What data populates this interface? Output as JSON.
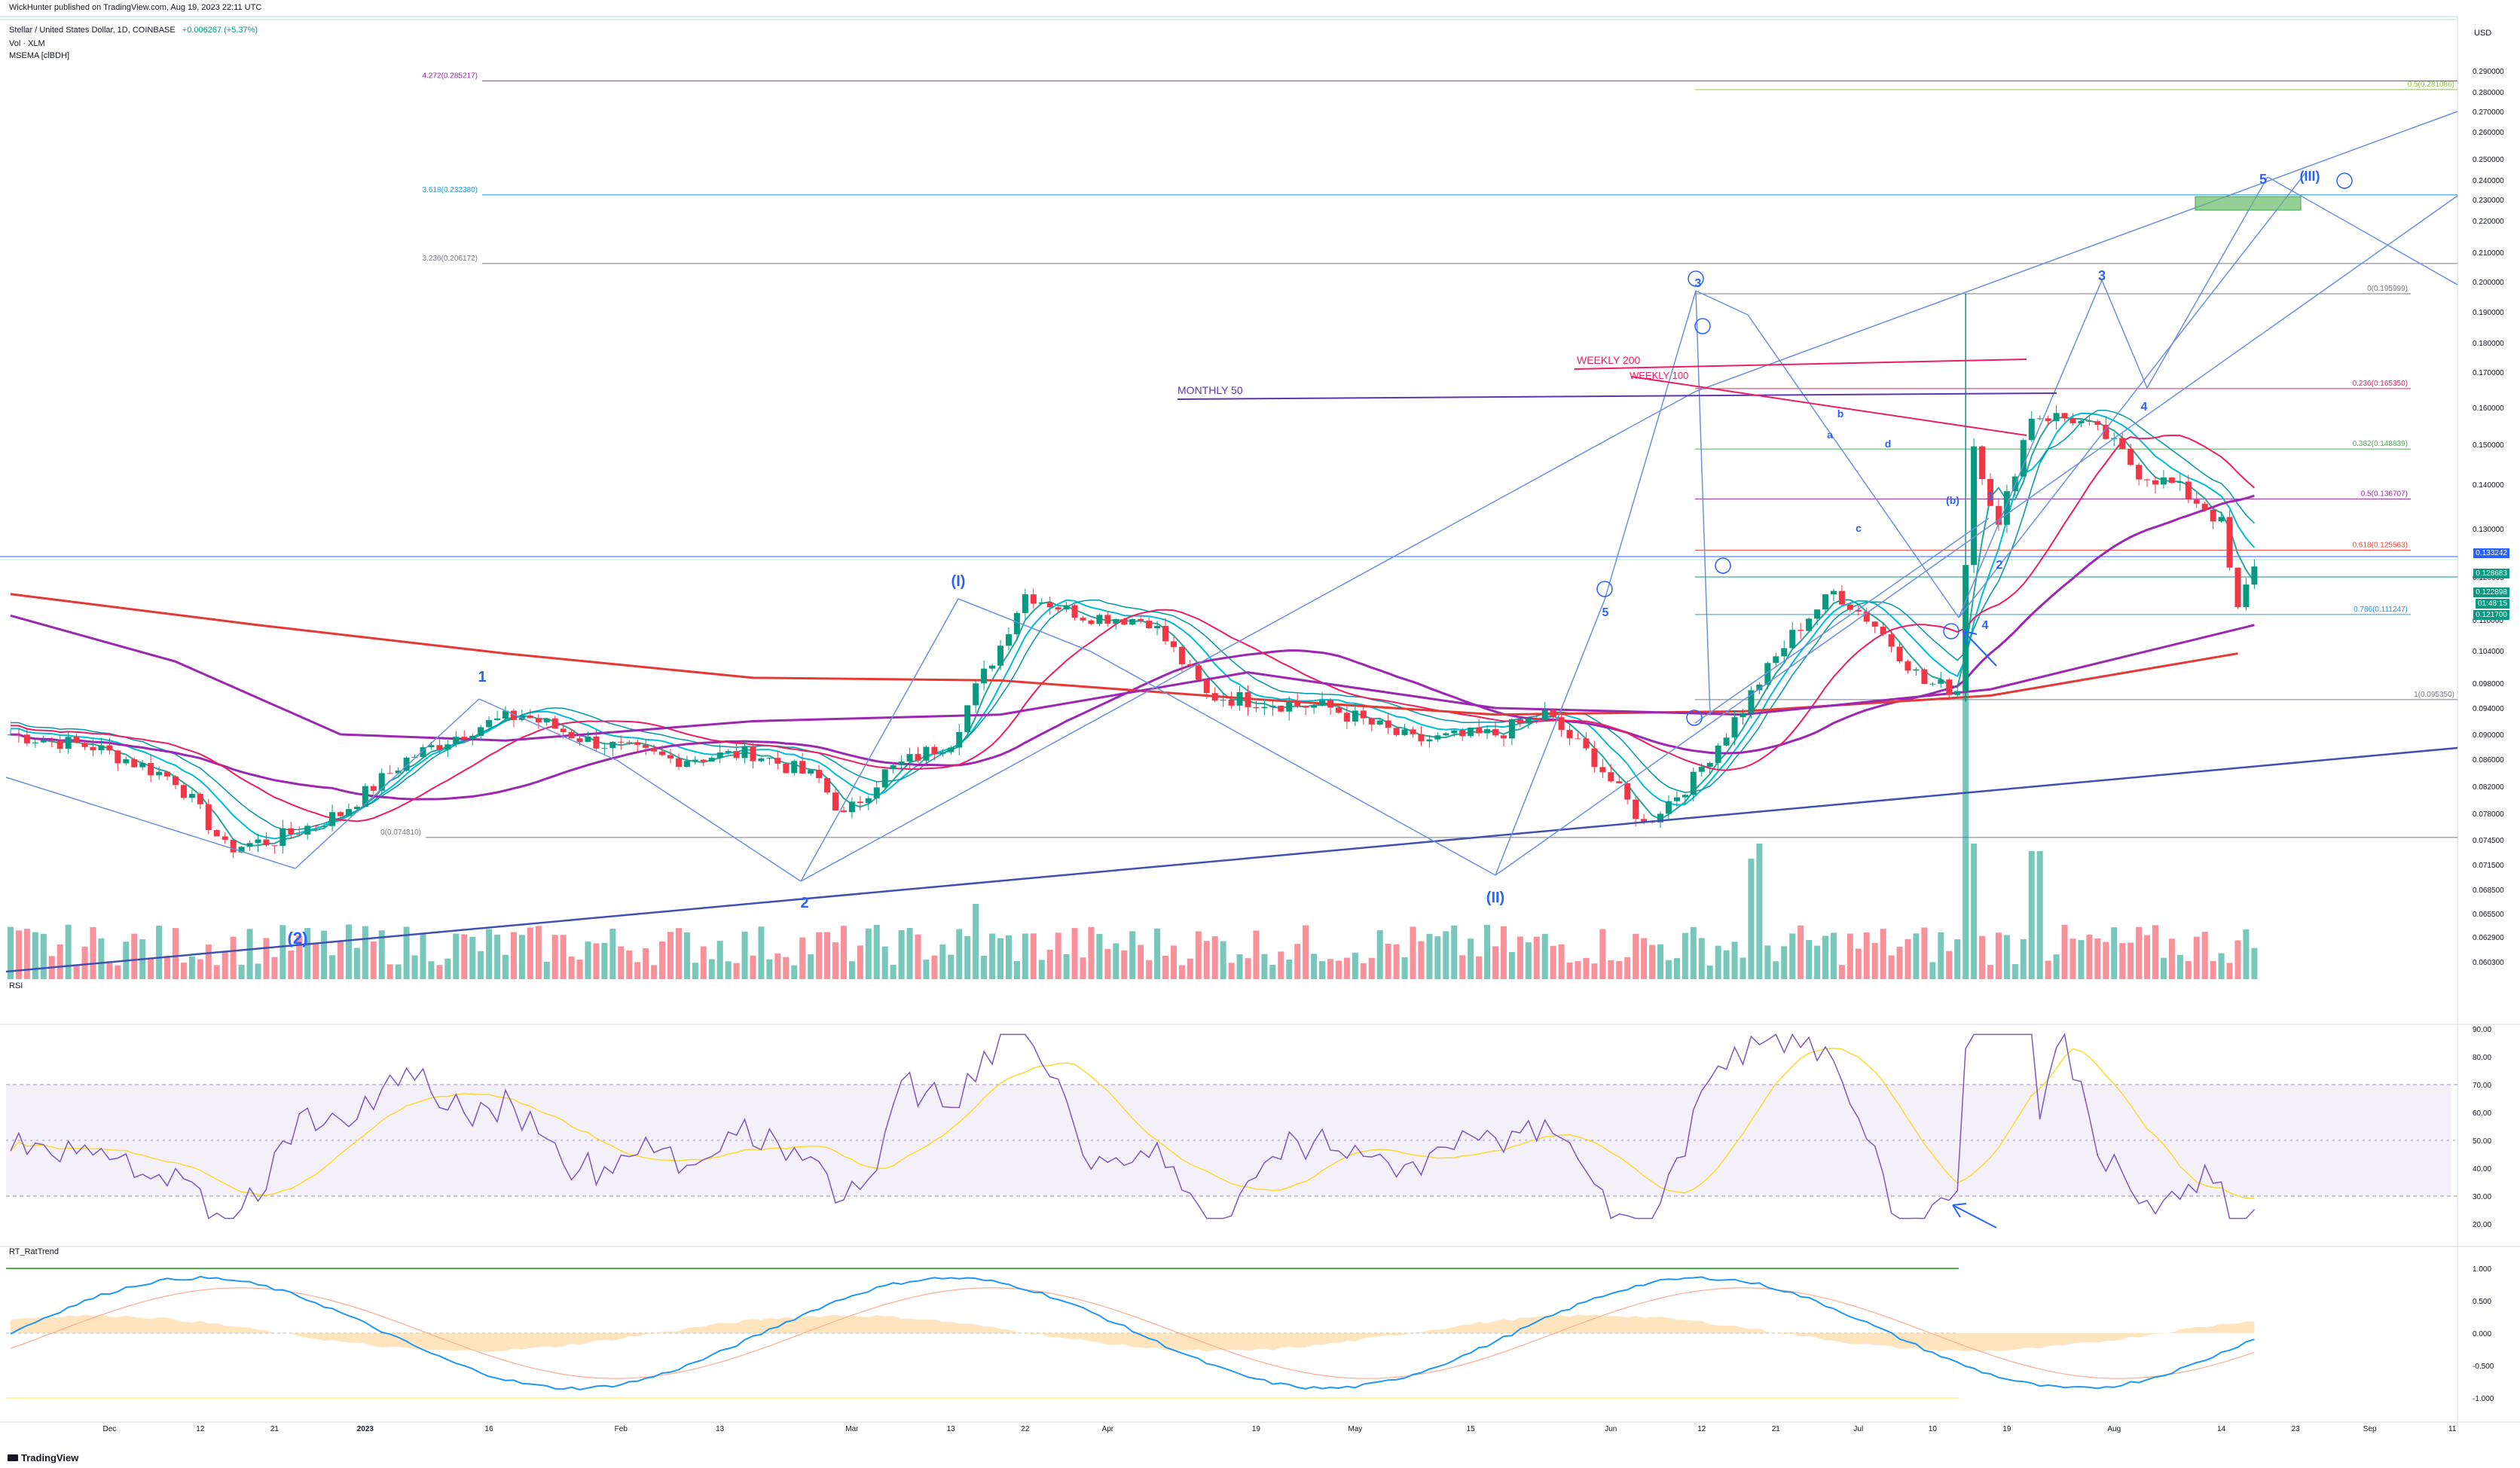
{
  "header": {
    "published": "WickHunter published on TradingView.com, Aug 19, 2023 22:11 UTC",
    "symbol_line": "Stellar / United States Dollar, 1D, COINBASE",
    "change": "+0.006267 (+5.37%)",
    "vol_label": "Vol · XLM",
    "msema_label": "MSEMA [clBDH]",
    "currency": "USD"
  },
  "price_axis": {
    "ticks": [
      "0.290000",
      "0.280000",
      "0.270000",
      "0.260000",
      "0.250000",
      "0.240000",
      "0.230000",
      "0.220000",
      "0.210000",
      "0.200000",
      "0.190000",
      "0.180000",
      "0.170000",
      "0.160000",
      "0.150000",
      "0.140000",
      "0.130000",
      "0.120000",
      "0.110000",
      "0.104000",
      "0.098000",
      "0.094000",
      "0.090000",
      "0.086000",
      "0.082000",
      "0.078000",
      "0.074500",
      "0.071500",
      "0.068500",
      "0.065500",
      "0.062900",
      "0.060300"
    ],
    "tags": [
      {
        "text": "0.133242",
        "color": "#2962ff"
      },
      {
        "text": "0.128683",
        "color": "#089981"
      },
      {
        "text": "0.122898",
        "color": "#089981"
      },
      {
        "text": "01:48:15",
        "color": "#089981"
      },
      {
        "text": "0.121700",
        "color": "#089981"
      }
    ]
  },
  "fib_levels": [
    {
      "label": "4.272(0.285217)",
      "value": 0.285217,
      "color": "#9c27b0"
    },
    {
      "label": "3.618(0.232380)",
      "value": 0.23238,
      "color": "#2196f3"
    },
    {
      "label": "3.236(0.206172)",
      "value": 0.206172,
      "color": "#787b86"
    },
    {
      "label": "0(0.074810)",
      "value": 0.07481,
      "color": "#787b86"
    },
    {
      "label": "0.5(0.281086)",
      "value": 0.281086,
      "color": "#8bc34a"
    },
    {
      "label": "0(0.195999)",
      "value": 0.195999,
      "color": "#787b86"
    },
    {
      "label": "0.236(0.165350)",
      "value": 0.16535,
      "color": "#e91e63"
    },
    {
      "label": "0.382(0.148839)",
      "value": 0.148839,
      "color": "#4caf50"
    },
    {
      "label": "0.5(0.136707)",
      "value": 0.136707,
      "color": "#9c27b0"
    },
    {
      "label": "0.618(0.125563)",
      "value": 0.125563,
      "color": "#f44336"
    },
    {
      "label": "0.786(0.111247)",
      "value": 0.111247,
      "color": "#2196f3"
    },
    {
      "label": "1(0.095350)",
      "value": 0.09535,
      "color": "#787b86"
    }
  ],
  "annotations": {
    "monthly50": "MONTHLY 50",
    "weekly200": "WEEKLY 200",
    "weekly100": "WEEKLY 100"
  },
  "waves": [
    "1",
    "2",
    "(2)",
    "(I)",
    "(II)",
    "(III)",
    "3",
    "4",
    "5",
    "1",
    "2",
    "3",
    "4",
    "5",
    "a",
    "b",
    "c",
    "d",
    "(b)"
  ],
  "rsi": {
    "label": "RSI",
    "ticks": [
      "90.00",
      "80.00",
      "70.00",
      "60.00",
      "50.00",
      "40.00",
      "30.00",
      "20.00"
    ],
    "upper": 70,
    "lower": 30
  },
  "rattrend": {
    "label": "RT_RatTrend",
    "ticks": [
      "1.000",
      "0.500",
      "0.000",
      "-0.500",
      "-1.000"
    ]
  },
  "time_axis": [
    "Dec",
    "12",
    "21",
    "2023",
    "16",
    "Feb",
    "13",
    "Mar",
    "13",
    "22",
    "Apr",
    "19",
    "May",
    "15",
    "Jun",
    "12",
    "21",
    "Jul",
    "10",
    "19",
    "Aug",
    "14",
    "23",
    "Sep",
    "11",
    "20",
    "Oct",
    "16"
  ],
  "footer": {
    "logo": "TradingView"
  },
  "chart_data": {
    "type": "candlestick",
    "title": "Stellar / United States Dollar, 1D, COINBASE",
    "ylim": [
      0.0603,
      0.29
    ],
    "key_points": [
      {
        "label": "(2)",
        "x": "Dec 27",
        "y": 0.0725
      },
      {
        "label": "1",
        "x": "Jan 31",
        "y": 0.0935
      },
      {
        "label": "2",
        "x": "Mar 10",
        "y": 0.0748
      },
      {
        "label": "(I)",
        "x": "Apr 1",
        "y": 0.1165
      },
      {
        "label": "(II)",
        "x": "Jun 15",
        "y": 0.0755
      },
      {
        "label": "1",
        "x": "Jun 30",
        "y": 0.1165
      },
      {
        "label": "3",
        "x": "Jul 13",
        "y": 0.196
      },
      {
        "label": "4",
        "x": "Aug 17",
        "y": 0.1112
      },
      {
        "label": "current",
        "x": "Aug 19",
        "y": 0.1229
      }
    ],
    "series": [
      {
        "name": "MONTHLY 50",
        "values": [
          0.1636
        ]
      },
      {
        "name": "WEEKLY 200",
        "values": [
          0.1745
        ]
      },
      {
        "name": "WEEKLY 100",
        "values": [
          0.169
        ]
      }
    ]
  }
}
